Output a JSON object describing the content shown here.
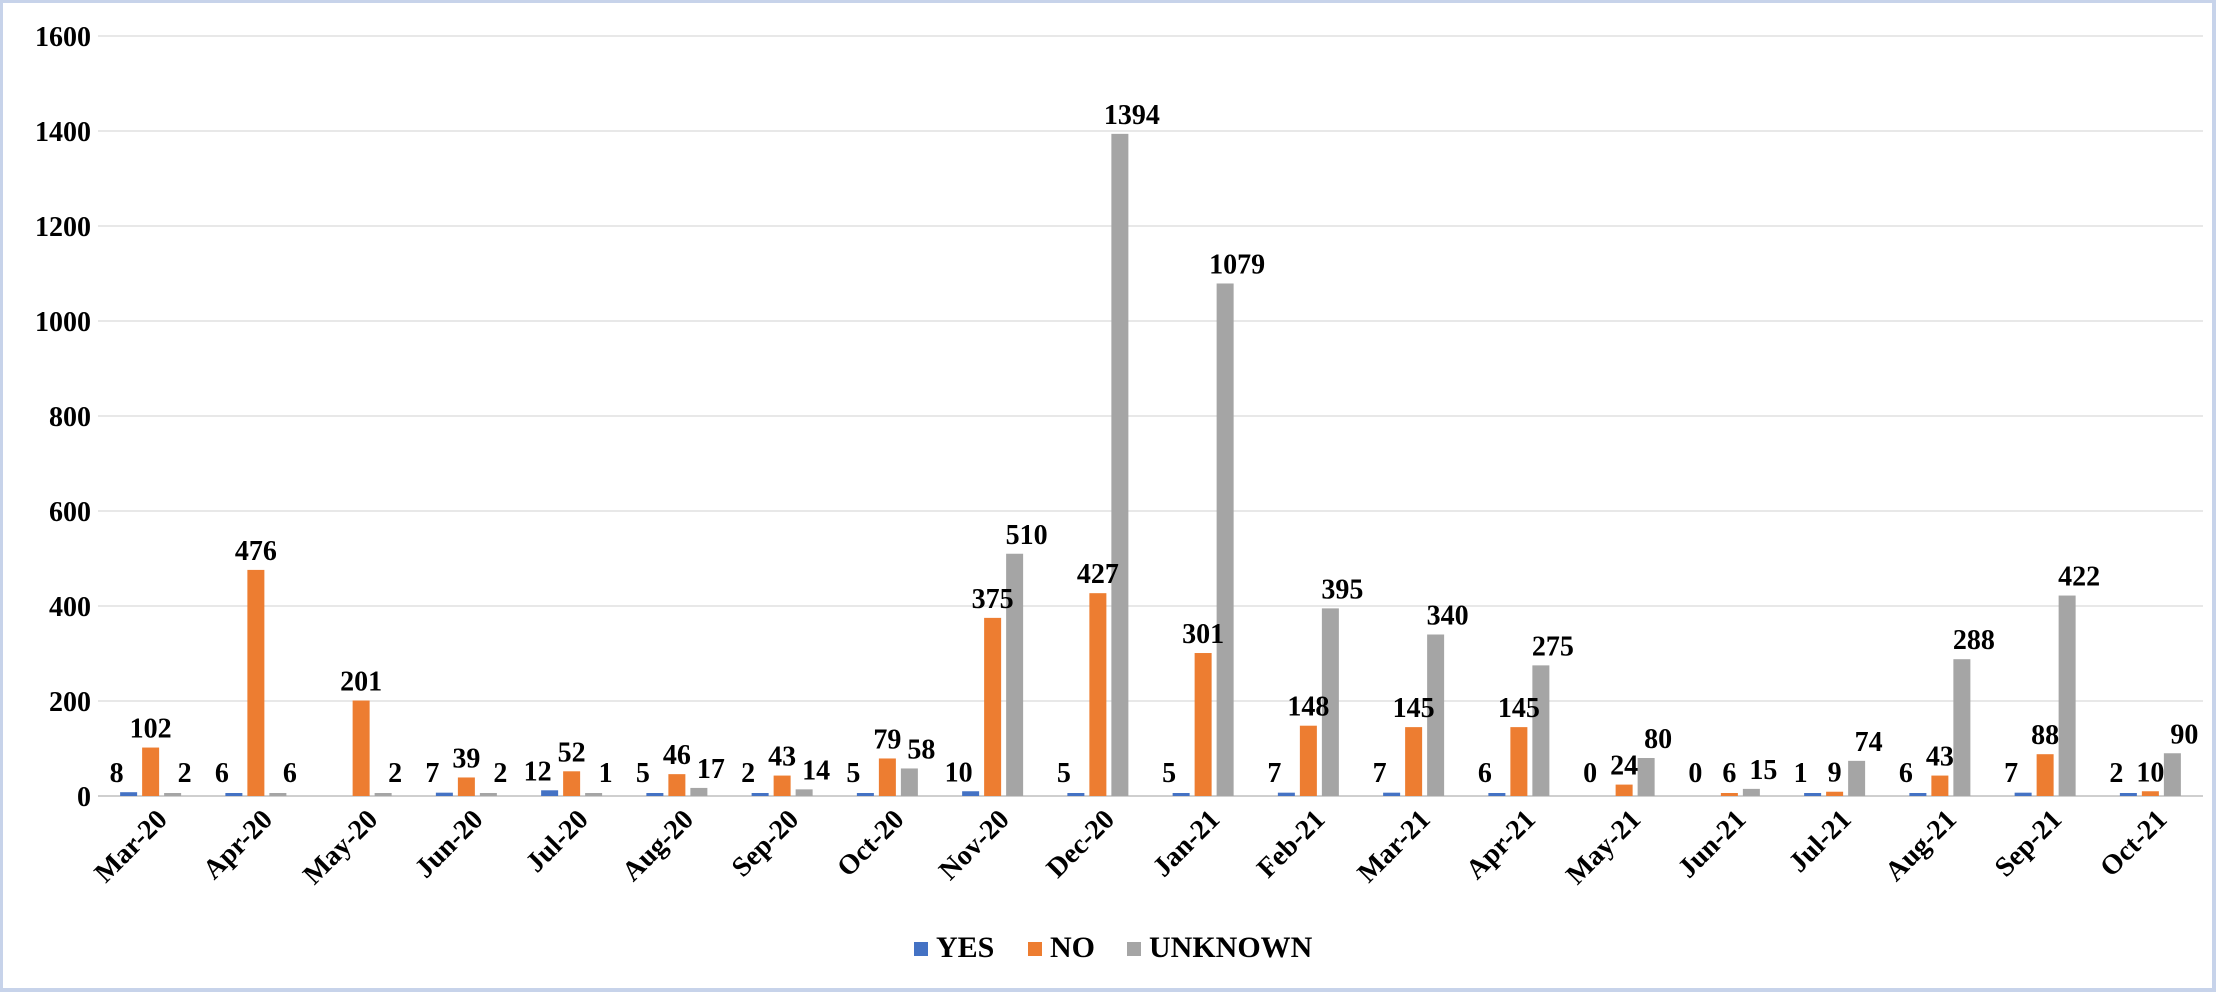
{
  "chart_data": {
    "type": "bar",
    "title": "",
    "xlabel": "",
    "ylabel": "",
    "ylim": [
      0,
      1600
    ],
    "yticks": [
      0,
      200,
      400,
      600,
      800,
      1000,
      1200,
      1400,
      1600
    ],
    "grid": true,
    "legend_position": "bottom-center",
    "categories": [
      "Mar-20",
      "Apr-20",
      "May-20",
      "Jun-20",
      "Jul-20",
      "Aug-20",
      "Sep-20",
      "Oct-20",
      "Nov-20",
      "Dec-20",
      "Jan-21",
      "Feb-21",
      "Mar-21",
      "Apr-21",
      "May-21",
      "Jun-21",
      "Jul-21",
      "Aug-21",
      "Sep-21",
      "Oct-21"
    ],
    "series": [
      {
        "name": "YES",
        "color": "#4472c4",
        "values": [
          8,
          6,
          null,
          7,
          12,
          5,
          2,
          5,
          10,
          5,
          5,
          7,
          7,
          6,
          0,
          0,
          1,
          6,
          7,
          2
        ]
      },
      {
        "name": "NO",
        "color": "#ed7d31",
        "values": [
          102,
          476,
          201,
          39,
          52,
          46,
          43,
          79,
          375,
          427,
          301,
          148,
          145,
          145,
          24,
          6,
          9,
          43,
          88,
          10
        ]
      },
      {
        "name": "UNKNOWN",
        "color": "#a5a5a5",
        "values": [
          2,
          6,
          2,
          2,
          1,
          17,
          14,
          58,
          510,
          1394,
          1079,
          395,
          340,
          275,
          80,
          15,
          74,
          288,
          422,
          90
        ]
      }
    ]
  }
}
